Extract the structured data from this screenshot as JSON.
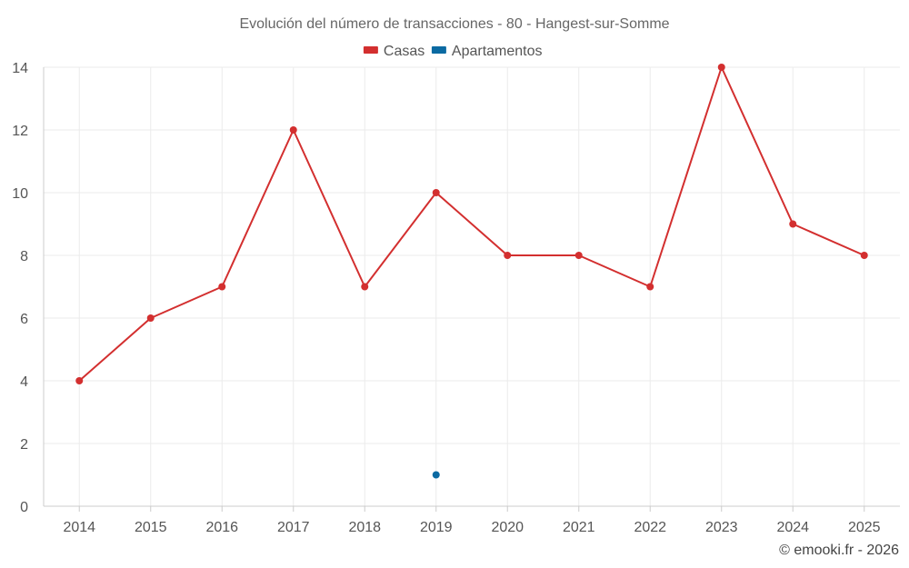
{
  "chart_data": {
    "type": "line",
    "title": "Evolución del número de transacciones - 80 - Hangest-sur-Somme",
    "xlabel": "",
    "ylabel": "",
    "categories": [
      "2014",
      "2015",
      "2016",
      "2017",
      "2018",
      "2019",
      "2020",
      "2021",
      "2022",
      "2023",
      "2024",
      "2025"
    ],
    "ylim": [
      0,
      14
    ],
    "yticks": [
      0,
      2,
      4,
      6,
      8,
      10,
      12,
      14
    ],
    "grid": true,
    "legend_position": "top-center",
    "series": [
      {
        "name": "Casas",
        "color": "#d32f2f",
        "values": [
          4,
          6,
          7,
          12,
          7,
          10,
          8,
          8,
          7,
          14,
          9,
          8
        ]
      },
      {
        "name": "Apartamentos",
        "color": "#0b6aa2",
        "values": [
          null,
          null,
          null,
          null,
          null,
          1,
          null,
          null,
          null,
          null,
          null,
          null
        ]
      }
    ]
  },
  "credit": "© emooki.fr - 2026"
}
